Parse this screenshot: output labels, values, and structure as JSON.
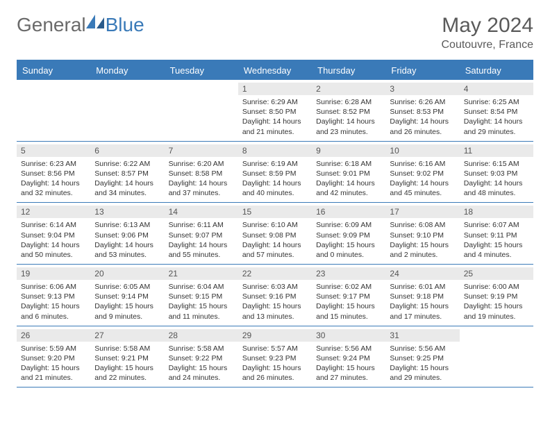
{
  "logo": {
    "text1": "General",
    "text2": "Blue"
  },
  "header": {
    "title": "May 2024",
    "location": "Coutouvre, France"
  },
  "colors": {
    "accent": "#3a7ab8",
    "header_bg": "#3a7ab8",
    "daynum_bg": "#eaeaea"
  },
  "daynames": [
    "Sunday",
    "Monday",
    "Tuesday",
    "Wednesday",
    "Thursday",
    "Friday",
    "Saturday"
  ],
  "weeks": [
    [
      null,
      null,
      null,
      {
        "n": "1",
        "sr": "Sunrise: 6:29 AM",
        "ss": "Sunset: 8:50 PM",
        "d1": "Daylight: 14 hours",
        "d2": "and 21 minutes."
      },
      {
        "n": "2",
        "sr": "Sunrise: 6:28 AM",
        "ss": "Sunset: 8:52 PM",
        "d1": "Daylight: 14 hours",
        "d2": "and 23 minutes."
      },
      {
        "n": "3",
        "sr": "Sunrise: 6:26 AM",
        "ss": "Sunset: 8:53 PM",
        "d1": "Daylight: 14 hours",
        "d2": "and 26 minutes."
      },
      {
        "n": "4",
        "sr": "Sunrise: 6:25 AM",
        "ss": "Sunset: 8:54 PM",
        "d1": "Daylight: 14 hours",
        "d2": "and 29 minutes."
      }
    ],
    [
      {
        "n": "5",
        "sr": "Sunrise: 6:23 AM",
        "ss": "Sunset: 8:56 PM",
        "d1": "Daylight: 14 hours",
        "d2": "and 32 minutes."
      },
      {
        "n": "6",
        "sr": "Sunrise: 6:22 AM",
        "ss": "Sunset: 8:57 PM",
        "d1": "Daylight: 14 hours",
        "d2": "and 34 minutes."
      },
      {
        "n": "7",
        "sr": "Sunrise: 6:20 AM",
        "ss": "Sunset: 8:58 PM",
        "d1": "Daylight: 14 hours",
        "d2": "and 37 minutes."
      },
      {
        "n": "8",
        "sr": "Sunrise: 6:19 AM",
        "ss": "Sunset: 8:59 PM",
        "d1": "Daylight: 14 hours",
        "d2": "and 40 minutes."
      },
      {
        "n": "9",
        "sr": "Sunrise: 6:18 AM",
        "ss": "Sunset: 9:01 PM",
        "d1": "Daylight: 14 hours",
        "d2": "and 42 minutes."
      },
      {
        "n": "10",
        "sr": "Sunrise: 6:16 AM",
        "ss": "Sunset: 9:02 PM",
        "d1": "Daylight: 14 hours",
        "d2": "and 45 minutes."
      },
      {
        "n": "11",
        "sr": "Sunrise: 6:15 AM",
        "ss": "Sunset: 9:03 PM",
        "d1": "Daylight: 14 hours",
        "d2": "and 48 minutes."
      }
    ],
    [
      {
        "n": "12",
        "sr": "Sunrise: 6:14 AM",
        "ss": "Sunset: 9:04 PM",
        "d1": "Daylight: 14 hours",
        "d2": "and 50 minutes."
      },
      {
        "n": "13",
        "sr": "Sunrise: 6:13 AM",
        "ss": "Sunset: 9:06 PM",
        "d1": "Daylight: 14 hours",
        "d2": "and 53 minutes."
      },
      {
        "n": "14",
        "sr": "Sunrise: 6:11 AM",
        "ss": "Sunset: 9:07 PM",
        "d1": "Daylight: 14 hours",
        "d2": "and 55 minutes."
      },
      {
        "n": "15",
        "sr": "Sunrise: 6:10 AM",
        "ss": "Sunset: 9:08 PM",
        "d1": "Daylight: 14 hours",
        "d2": "and 57 minutes."
      },
      {
        "n": "16",
        "sr": "Sunrise: 6:09 AM",
        "ss": "Sunset: 9:09 PM",
        "d1": "Daylight: 15 hours",
        "d2": "and 0 minutes."
      },
      {
        "n": "17",
        "sr": "Sunrise: 6:08 AM",
        "ss": "Sunset: 9:10 PM",
        "d1": "Daylight: 15 hours",
        "d2": "and 2 minutes."
      },
      {
        "n": "18",
        "sr": "Sunrise: 6:07 AM",
        "ss": "Sunset: 9:11 PM",
        "d1": "Daylight: 15 hours",
        "d2": "and 4 minutes."
      }
    ],
    [
      {
        "n": "19",
        "sr": "Sunrise: 6:06 AM",
        "ss": "Sunset: 9:13 PM",
        "d1": "Daylight: 15 hours",
        "d2": "and 6 minutes."
      },
      {
        "n": "20",
        "sr": "Sunrise: 6:05 AM",
        "ss": "Sunset: 9:14 PM",
        "d1": "Daylight: 15 hours",
        "d2": "and 9 minutes."
      },
      {
        "n": "21",
        "sr": "Sunrise: 6:04 AM",
        "ss": "Sunset: 9:15 PM",
        "d1": "Daylight: 15 hours",
        "d2": "and 11 minutes."
      },
      {
        "n": "22",
        "sr": "Sunrise: 6:03 AM",
        "ss": "Sunset: 9:16 PM",
        "d1": "Daylight: 15 hours",
        "d2": "and 13 minutes."
      },
      {
        "n": "23",
        "sr": "Sunrise: 6:02 AM",
        "ss": "Sunset: 9:17 PM",
        "d1": "Daylight: 15 hours",
        "d2": "and 15 minutes."
      },
      {
        "n": "24",
        "sr": "Sunrise: 6:01 AM",
        "ss": "Sunset: 9:18 PM",
        "d1": "Daylight: 15 hours",
        "d2": "and 17 minutes."
      },
      {
        "n": "25",
        "sr": "Sunrise: 6:00 AM",
        "ss": "Sunset: 9:19 PM",
        "d1": "Daylight: 15 hours",
        "d2": "and 19 minutes."
      }
    ],
    [
      {
        "n": "26",
        "sr": "Sunrise: 5:59 AM",
        "ss": "Sunset: 9:20 PM",
        "d1": "Daylight: 15 hours",
        "d2": "and 21 minutes."
      },
      {
        "n": "27",
        "sr": "Sunrise: 5:58 AM",
        "ss": "Sunset: 9:21 PM",
        "d1": "Daylight: 15 hours",
        "d2": "and 22 minutes."
      },
      {
        "n": "28",
        "sr": "Sunrise: 5:58 AM",
        "ss": "Sunset: 9:22 PM",
        "d1": "Daylight: 15 hours",
        "d2": "and 24 minutes."
      },
      {
        "n": "29",
        "sr": "Sunrise: 5:57 AM",
        "ss": "Sunset: 9:23 PM",
        "d1": "Daylight: 15 hours",
        "d2": "and 26 minutes."
      },
      {
        "n": "30",
        "sr": "Sunrise: 5:56 AM",
        "ss": "Sunset: 9:24 PM",
        "d1": "Daylight: 15 hours",
        "d2": "and 27 minutes."
      },
      {
        "n": "31",
        "sr": "Sunrise: 5:56 AM",
        "ss": "Sunset: 9:25 PM",
        "d1": "Daylight: 15 hours",
        "d2": "and 29 minutes."
      },
      null
    ]
  ]
}
